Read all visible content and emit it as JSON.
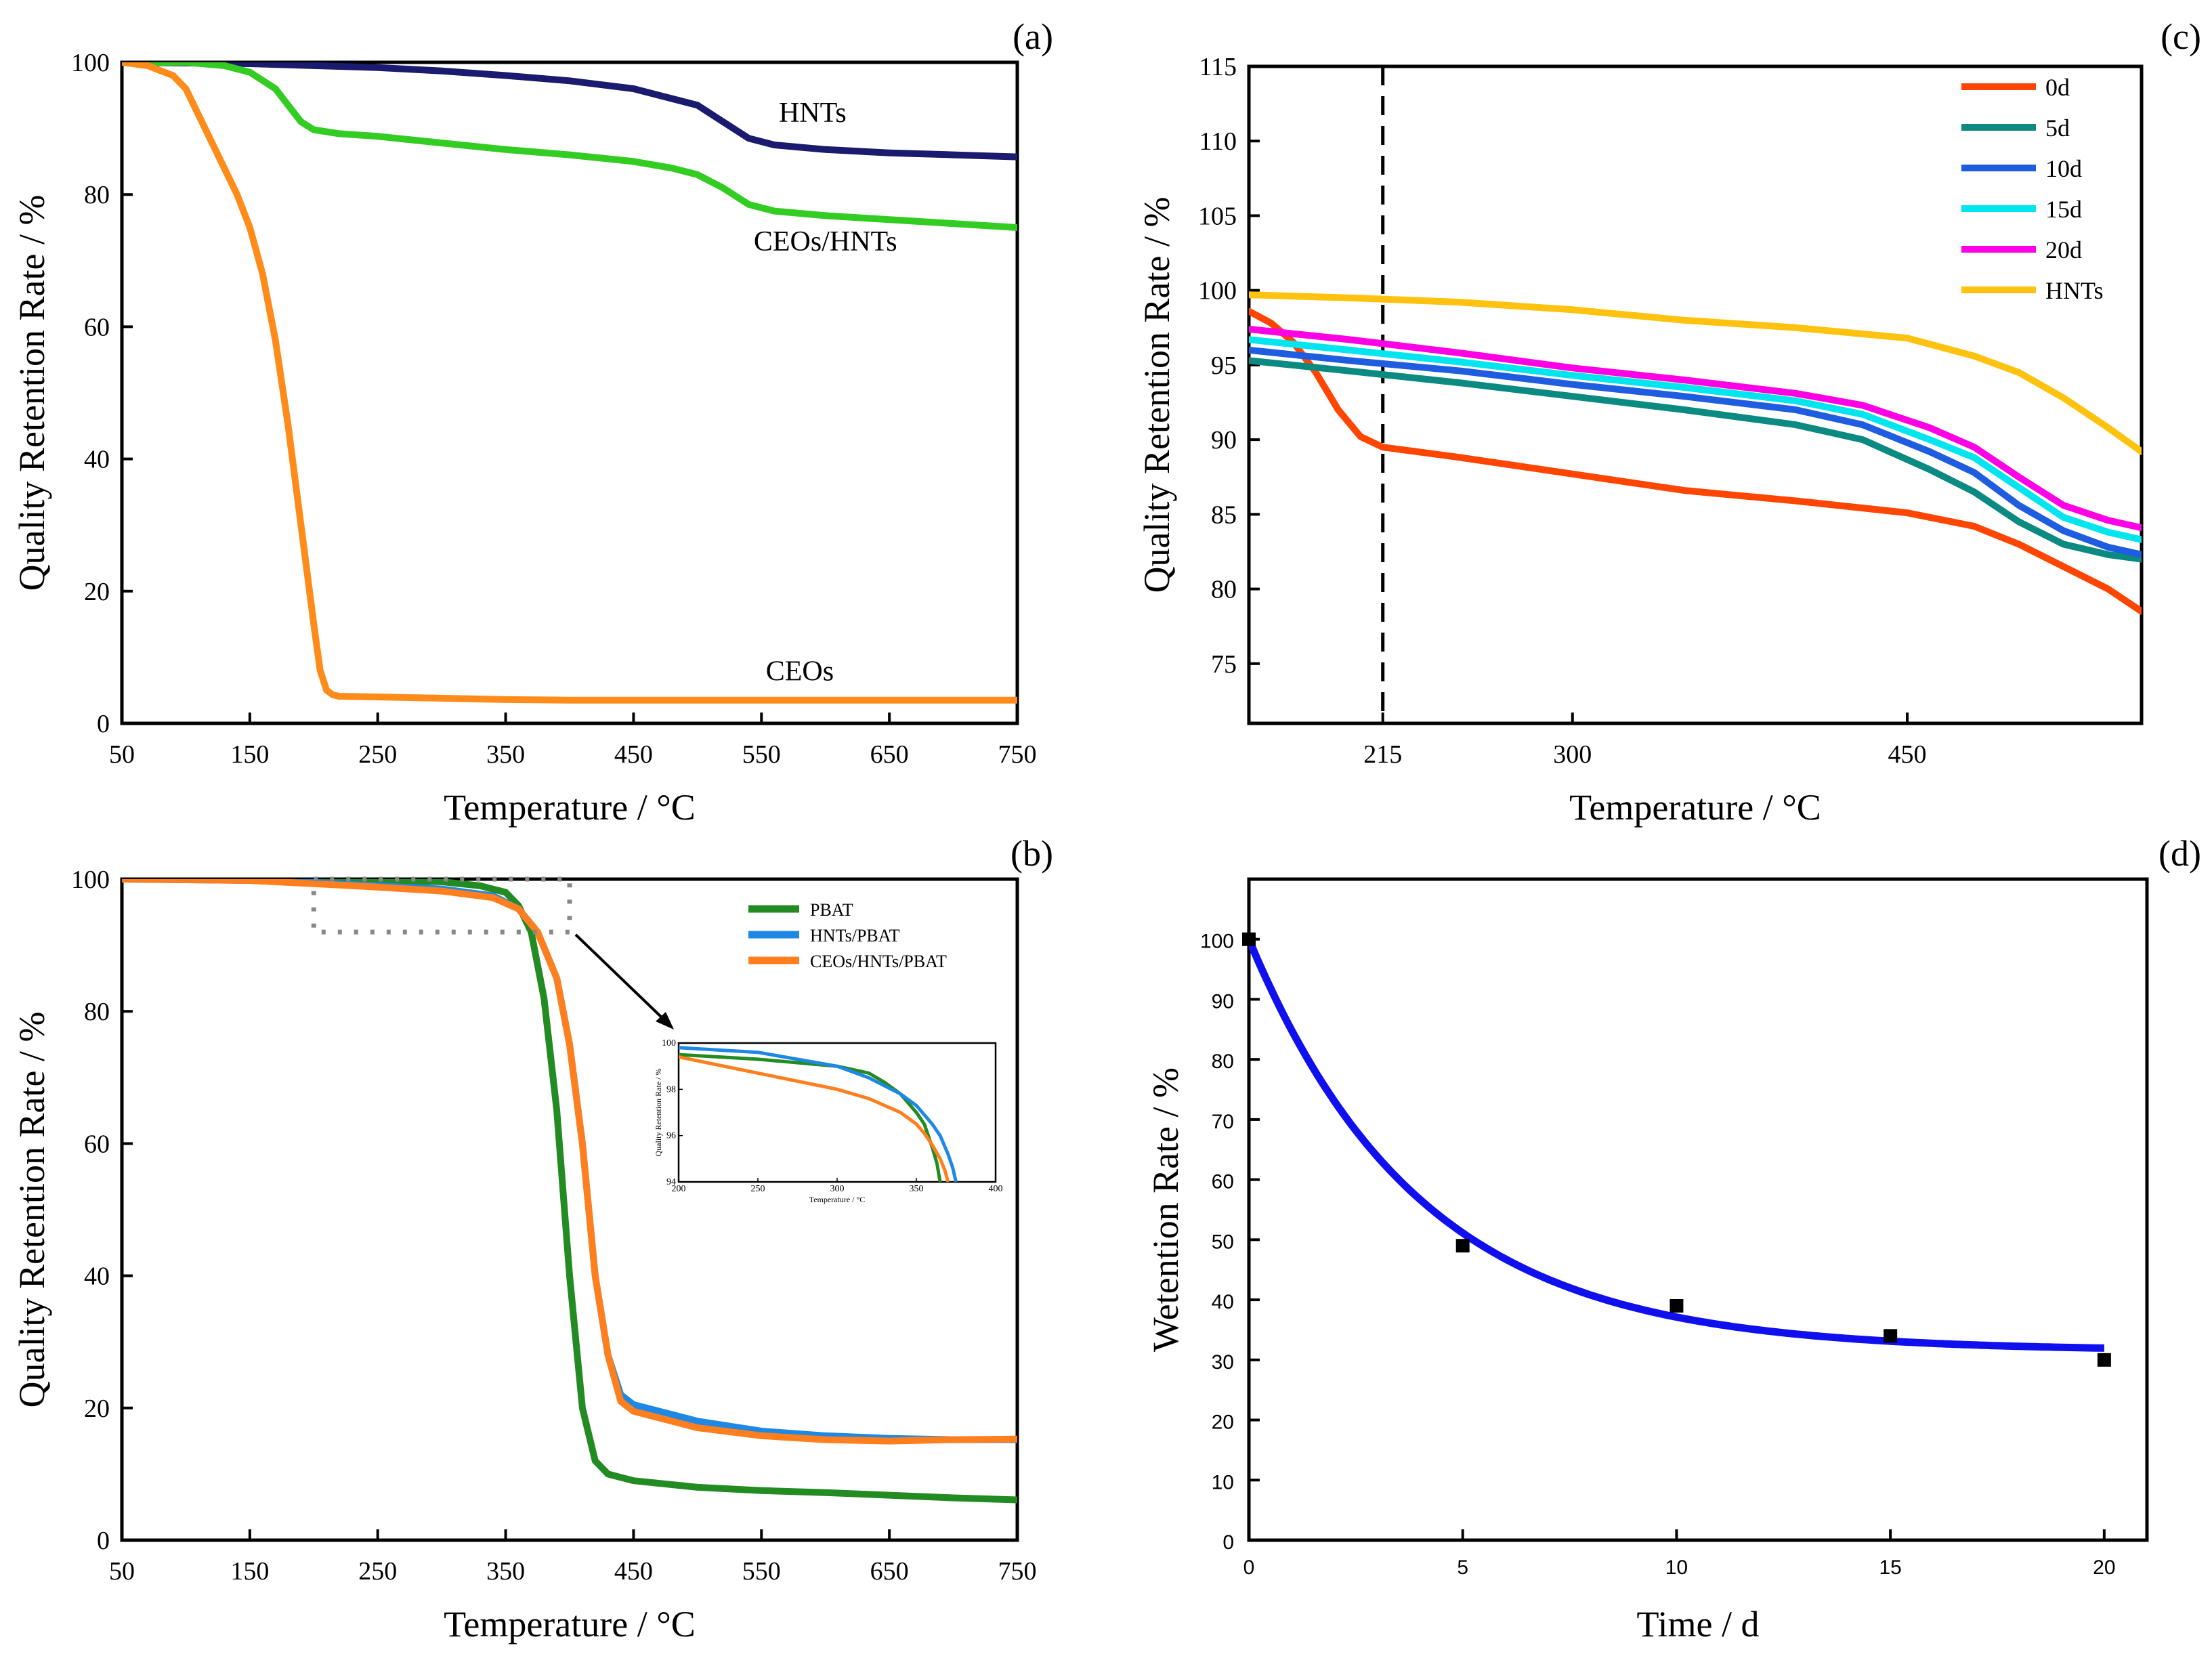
{
  "chart_data": [
    {
      "id": "a",
      "type": "line",
      "panel_label": "(a)",
      "xlabel": "Temperature / °C",
      "ylabel": "Quality Retention Rate / %",
      "xlim": [
        50,
        750
      ],
      "ylim": [
        0,
        100
      ],
      "xticks": [
        50,
        150,
        250,
        350,
        450,
        550,
        650,
        750
      ],
      "yticks": [
        0,
        20,
        40,
        60,
        80,
        100
      ],
      "series": [
        {
          "name": "HNTs",
          "color": "#1a1a6e",
          "x": [
            50,
            100,
            150,
            200,
            250,
            300,
            350,
            400,
            450,
            500,
            520,
            540,
            560,
            600,
            650,
            700,
            750
          ],
          "y": [
            100,
            99.9,
            99.8,
            99.5,
            99.2,
            98.7,
            98.0,
            97.2,
            96.0,
            93.5,
            91.0,
            88.5,
            87.5,
            86.8,
            86.3,
            86.0,
            85.7
          ]
        },
        {
          "name": "CEOs/HNTs",
          "color": "#33cc22",
          "x": [
            50,
            100,
            130,
            150,
            170,
            190,
            200,
            220,
            250,
            300,
            350,
            400,
            450,
            480,
            500,
            520,
            540,
            560,
            600,
            650,
            700,
            750
          ],
          "y": [
            100,
            100,
            99.5,
            98.5,
            96,
            91,
            89.8,
            89.2,
            88.8,
            87.8,
            86.8,
            86.0,
            85.0,
            84.0,
            83.0,
            81.0,
            78.5,
            77.5,
            76.8,
            76.2,
            75.6,
            75.0
          ]
        },
        {
          "name": "CEOs",
          "color": "#ff8c1a",
          "x": [
            50,
            70,
            90,
            100,
            110,
            120,
            130,
            140,
            150,
            160,
            170,
            180,
            190,
            200,
            205,
            210,
            215,
            220,
            250,
            300,
            350,
            400,
            450,
            550,
            650,
            750
          ],
          "y": [
            100,
            99.5,
            98,
            96,
            92,
            88,
            84,
            80,
            75,
            68,
            58,
            45,
            30,
            15,
            8,
            5,
            4.3,
            4.1,
            4.0,
            3.8,
            3.6,
            3.5,
            3.5,
            3.5,
            3.5,
            3.5
          ]
        }
      ],
      "annotations": [
        {
          "text": "HNTs",
          "x": 590,
          "y": 91
        },
        {
          "text": "CEOs/HNTs",
          "x": 600,
          "y": 71.5
        },
        {
          "text": "CEOs",
          "x": 580,
          "y": 6.5
        }
      ]
    },
    {
      "id": "b",
      "type": "line",
      "panel_label": "(b)",
      "xlabel": "Temperature / °C",
      "ylabel": "Quality Retention Rate / %",
      "xlim": [
        50,
        750
      ],
      "ylim": [
        0,
        100
      ],
      "xticks": [
        50,
        150,
        250,
        350,
        450,
        550,
        650,
        750
      ],
      "yticks": [
        0,
        20,
        40,
        60,
        80,
        100
      ],
      "series": [
        {
          "name": "PBAT",
          "color": "#228b22",
          "x": [
            50,
            150,
            250,
            300,
            330,
            350,
            360,
            370,
            380,
            390,
            400,
            410,
            420,
            430,
            450,
            500,
            550,
            600,
            650,
            700,
            750
          ],
          "y": [
            100,
            100,
            99.8,
            99.6,
            99,
            98,
            96,
            92,
            82,
            65,
            40,
            20,
            12,
            10,
            9,
            8,
            7.5,
            7.2,
            6.8,
            6.4,
            6.1
          ]
        },
        {
          "name": "HNTs/PBAT",
          "color": "#1e88e5",
          "x": [
            50,
            150,
            200,
            250,
            300,
            340,
            360,
            375,
            390,
            400,
            410,
            420,
            430,
            440,
            450,
            500,
            550,
            600,
            650,
            700,
            750
          ],
          "y": [
            100,
            99.8,
            99.5,
            99.0,
            98.5,
            97.5,
            95.5,
            92,
            85,
            75,
            60,
            40,
            28,
            22,
            20.5,
            18,
            16.5,
            15.8,
            15.4,
            15.2,
            15.2
          ]
        },
        {
          "name": "CEOs/HNTs/PBAT",
          "color": "#ff7f1e",
          "x": [
            50,
            150,
            200,
            250,
            300,
            340,
            360,
            375,
            390,
            400,
            410,
            420,
            430,
            440,
            450,
            500,
            550,
            600,
            650,
            700,
            750
          ],
          "y": [
            100,
            99.8,
            99.3,
            98.8,
            98.2,
            97.2,
            95.5,
            92,
            85,
            75,
            60,
            40,
            28,
            21,
            19.5,
            17,
            15.8,
            15.2,
            15.0,
            15.2,
            15.3
          ]
        }
      ],
      "legend": [
        "PBAT",
        "HNTs/PBAT",
        "CEOs/HNTs/PBAT"
      ],
      "inset": {
        "xlim": [
          200,
          400
        ],
        "ylim": [
          94,
          100
        ],
        "xticks": [
          200,
          250,
          300,
          350,
          400
        ],
        "yticks": [
          94,
          96,
          98,
          100
        ],
        "tick_labels_x": [
          "200",
          "250",
          "300",
          "350",
          "400"
        ],
        "tick_labels_y": [
          "94",
          "96",
          "98",
          "100"
        ],
        "xlabel": "Temperature / °C",
        "ylabel": "Quality Retention Rate / %",
        "series": [
          {
            "name": "PBAT",
            "color": "#228b22",
            "x": [
              200,
              250,
              300,
              320,
              330,
              340,
              350,
              355,
              360,
              363,
              365
            ],
            "y": [
              99.5,
              99.3,
              99.0,
              98.7,
              98.3,
              97.8,
              97,
              96.5,
              95.5,
              94.8,
              94
            ]
          },
          {
            "name": "HNTs/PBAT",
            "color": "#1e88e5",
            "x": [
              200,
              250,
              300,
              320,
              340,
              350,
              360,
              365,
              370,
              373,
              375
            ],
            "y": [
              99.8,
              99.6,
              99.0,
              98.5,
              97.8,
              97.3,
              96.5,
              96,
              95.2,
              94.6,
              94
            ]
          },
          {
            "name": "CEOs/HNTs/PBAT",
            "color": "#ff7f1e",
            "x": [
              200,
              250,
              300,
              320,
              340,
              350,
              355,
              360,
              365,
              368,
              370
            ],
            "y": [
              99.4,
              98.7,
              98.0,
              97.6,
              97.0,
              96.5,
              96.1,
              95.6,
              95,
              94.5,
              94
            ]
          }
        ]
      }
    },
    {
      "id": "c",
      "type": "line",
      "panel_label": "(c)",
      "xlabel": "Temperature / °C",
      "ylabel": "Quality Retention Rate / %",
      "xlim": [
        155,
        555
      ],
      "ylim": [
        71,
        115
      ],
      "xticks": [
        215,
        300,
        450
      ],
      "yticks": [
        75,
        80,
        85,
        90,
        95,
        100,
        105,
        110,
        115
      ],
      "vline": 215,
      "series": [
        {
          "name": "0d",
          "color": "#ff4500",
          "x": [
            155,
            165,
            175,
            185,
            195,
            205,
            215,
            250,
            300,
            350,
            400,
            450,
            480,
            500,
            520,
            540,
            555
          ],
          "y": [
            98.6,
            97.8,
            96.5,
            94.5,
            92,
            90.2,
            89.5,
            88.8,
            87.7,
            86.6,
            85.9,
            85.1,
            84.2,
            83.0,
            81.5,
            80.0,
            78.5
          ]
        },
        {
          "name": "5d",
          "color": "#0a8a80",
          "x": [
            155,
            200,
            250,
            300,
            350,
            400,
            430,
            460,
            480,
            500,
            520,
            540,
            555
          ],
          "y": [
            95.3,
            94.6,
            93.8,
            92.9,
            92.0,
            91.0,
            90.0,
            88.0,
            86.5,
            84.5,
            83.0,
            82.3,
            82.0
          ]
        },
        {
          "name": "10d",
          "color": "#1f5de0",
          "x": [
            155,
            200,
            250,
            300,
            350,
            400,
            430,
            460,
            480,
            500,
            520,
            540,
            555
          ],
          "y": [
            96.0,
            95.3,
            94.6,
            93.7,
            92.9,
            92.0,
            91.0,
            89.2,
            87.8,
            85.6,
            83.9,
            82.8,
            82.3
          ]
        },
        {
          "name": "15d",
          "color": "#00e5ee",
          "x": [
            155,
            200,
            250,
            300,
            350,
            400,
            430,
            460,
            480,
            500,
            520,
            540,
            555
          ],
          "y": [
            96.7,
            96.0,
            95.2,
            94.3,
            93.5,
            92.6,
            91.7,
            90.0,
            88.8,
            86.8,
            84.8,
            83.8,
            83.3
          ]
        },
        {
          "name": "20d",
          "color": "#ff00e6",
          "x": [
            155,
            200,
            250,
            300,
            350,
            400,
            430,
            460,
            480,
            500,
            520,
            540,
            555
          ],
          "y": [
            97.4,
            96.7,
            95.8,
            94.8,
            94.0,
            93.1,
            92.3,
            90.8,
            89.5,
            87.5,
            85.6,
            84.6,
            84.1
          ]
        },
        {
          "name": "HNTs",
          "color": "#ffc20e",
          "x": [
            155,
            200,
            250,
            300,
            350,
            400,
            450,
            480,
            500,
            520,
            540,
            555
          ],
          "y": [
            99.7,
            99.5,
            99.2,
            98.7,
            98.0,
            97.5,
            96.8,
            95.6,
            94.5,
            92.8,
            90.8,
            89.2
          ]
        }
      ],
      "legend": [
        "0d",
        "5d",
        "10d",
        "15d",
        "20d",
        "HNTs"
      ]
    },
    {
      "id": "d",
      "type": "scatter",
      "panel_label": "(d)",
      "xlabel": "Time / d",
      "ylabel": "Wetention Rate / %",
      "xlim": [
        0,
        21
      ],
      "ylim": [
        0,
        110
      ],
      "xticks": [
        0,
        5,
        10,
        15,
        20
      ],
      "yticks": [
        0,
        10,
        20,
        30,
        40,
        50,
        60,
        70,
        80,
        90,
        100
      ],
      "points": {
        "x": [
          0,
          5,
          10,
          15,
          20
        ],
        "y": [
          100,
          49,
          39,
          34,
          30
        ]
      },
      "point_color": "#000000",
      "fit": {
        "color": "#1010ee",
        "model": "exponential",
        "y0": 31.5,
        "A": 68.5,
        "tau": 4.0,
        "x_range": [
          0,
          20
        ]
      }
    }
  ]
}
